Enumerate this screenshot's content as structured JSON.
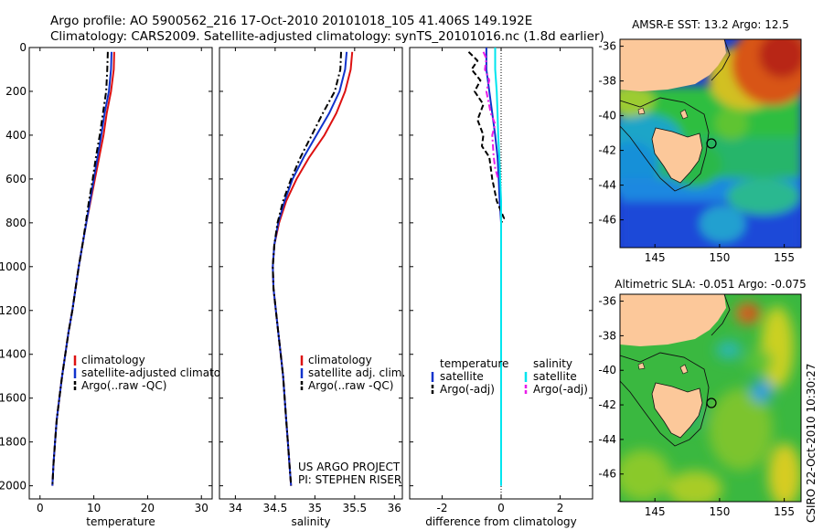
{
  "header": {
    "line1": "Argo profile: AO 5900562_216 17-Oct-2010 20101018_105 41.406S 149.192E",
    "line2": "Climatology: CARS2009. Satellite-adjusted climatology: synTS_20101016.nc (1.8d earlier)"
  },
  "side_text": "CSIRO 22-Oct-2010 10:30:27",
  "colors": {
    "red": "#dd1111",
    "blue": "#1133cc",
    "black": "#000000",
    "cyan": "#00e5ee",
    "magenta": "#e81ce8"
  },
  "chart_data": [
    {
      "type": "line",
      "xlabel": "temperature",
      "xlim": [
        -2,
        32
      ],
      "xticks": [
        0,
        10,
        20,
        30
      ],
      "ylim": [
        0,
        2060
      ],
      "yticks": [
        0,
        200,
        400,
        600,
        800,
        1000,
        1200,
        1400,
        1600,
        1800,
        2000
      ],
      "y_reversed": true,
      "legend_placement": "lower-center",
      "legend": [
        "climatology",
        "satellite-adjusted climatology",
        "Argo(..raw -QC)"
      ],
      "series": [
        {
          "name": "climatology",
          "color": "red",
          "style": "solid",
          "points": [
            [
              13.8,
              20
            ],
            [
              13.7,
              100
            ],
            [
              13.2,
              200
            ],
            [
              12.4,
              300
            ],
            [
              11.8,
              400
            ],
            [
              11.0,
              500
            ],
            [
              10.2,
              600
            ],
            [
              9.4,
              700
            ],
            [
              8.6,
              800
            ],
            [
              7.9,
              900
            ],
            [
              7.2,
              1000
            ],
            [
              6.6,
              1100
            ],
            [
              6.0,
              1200
            ],
            [
              5.3,
              1300
            ],
            [
              4.7,
              1400
            ],
            [
              4.1,
              1500
            ],
            [
              3.6,
              1600
            ],
            [
              3.1,
              1700
            ],
            [
              2.8,
              1800
            ],
            [
              2.5,
              1900
            ],
            [
              2.3,
              2000
            ]
          ]
        },
        {
          "name": "satellite-adjusted climatology",
          "color": "blue",
          "style": "solid",
          "points": [
            [
              13.3,
              20
            ],
            [
              13.2,
              100
            ],
            [
              12.8,
              200
            ],
            [
              12.0,
              300
            ],
            [
              11.4,
              400
            ],
            [
              10.7,
              500
            ],
            [
              10.0,
              600
            ],
            [
              9.3,
              700
            ],
            [
              8.6,
              800
            ],
            [
              7.9,
              900
            ],
            [
              7.2,
              1000
            ],
            [
              6.6,
              1100
            ],
            [
              6.0,
              1200
            ],
            [
              5.3,
              1300
            ],
            [
              4.7,
              1400
            ],
            [
              4.1,
              1500
            ],
            [
              3.6,
              1600
            ],
            [
              3.1,
              1700
            ],
            [
              2.8,
              1800
            ],
            [
              2.5,
              1900
            ],
            [
              2.3,
              2000
            ]
          ]
        },
        {
          "name": "Argo(..raw -QC)",
          "color": "black",
          "style": "dashdot",
          "points": [
            [
              12.6,
              20
            ],
            [
              12.5,
              100
            ],
            [
              12.3,
              200
            ],
            [
              11.7,
              300
            ],
            [
              11.1,
              400
            ],
            [
              10.4,
              500
            ],
            [
              9.8,
              600
            ],
            [
              9.1,
              700
            ],
            [
              8.5,
              800
            ],
            [
              7.9,
              900
            ],
            [
              7.2,
              1000
            ],
            [
              6.6,
              1100
            ],
            [
              6.0,
              1200
            ],
            [
              5.3,
              1300
            ],
            [
              4.7,
              1400
            ],
            [
              4.1,
              1500
            ],
            [
              3.6,
              1600
            ],
            [
              3.1,
              1700
            ],
            [
              2.8,
              1800
            ],
            [
              2.5,
              1900
            ],
            [
              2.3,
              2000
            ]
          ]
        }
      ]
    },
    {
      "type": "line",
      "xlabel": "salinity",
      "xlim": [
        33.8,
        36.1
      ],
      "xticks": [
        34,
        34.5,
        35,
        35.5,
        36
      ],
      "ylim": [
        0,
        2060
      ],
      "y_reversed": true,
      "legend_placement": "lower-right",
      "legend": [
        "climatology",
        "satellite adj. clim.",
        "Argo(..raw -QC)"
      ],
      "annotation": [
        "US ARGO PROJECT",
        "PI: STEPHEN RISER"
      ],
      "series": [
        {
          "name": "climatology",
          "color": "red",
          "style": "solid",
          "points": [
            [
              35.47,
              20
            ],
            [
              35.45,
              100
            ],
            [
              35.38,
              200
            ],
            [
              35.27,
              300
            ],
            [
              35.12,
              400
            ],
            [
              34.93,
              500
            ],
            [
              34.77,
              600
            ],
            [
              34.64,
              700
            ],
            [
              34.55,
              800
            ],
            [
              34.49,
              900
            ],
            [
              34.47,
              1000
            ],
            [
              34.48,
              1100
            ],
            [
              34.51,
              1200
            ],
            [
              34.54,
              1300
            ],
            [
              34.57,
              1400
            ],
            [
              34.6,
              1500
            ],
            [
              34.62,
              1600
            ],
            [
              34.64,
              1700
            ],
            [
              34.66,
              1800
            ],
            [
              34.68,
              1900
            ],
            [
              34.7,
              2000
            ]
          ]
        },
        {
          "name": "satellite adj. clim.",
          "color": "blue",
          "style": "solid",
          "points": [
            [
              35.4,
              20
            ],
            [
              35.38,
              100
            ],
            [
              35.31,
              200
            ],
            [
              35.18,
              300
            ],
            [
              35.02,
              400
            ],
            [
              34.86,
              500
            ],
            [
              34.72,
              600
            ],
            [
              34.62,
              700
            ],
            [
              34.54,
              800
            ],
            [
              34.49,
              900
            ],
            [
              34.47,
              1000
            ],
            [
              34.48,
              1100
            ],
            [
              34.51,
              1200
            ],
            [
              34.54,
              1300
            ],
            [
              34.57,
              1400
            ],
            [
              34.6,
              1500
            ],
            [
              34.62,
              1600
            ],
            [
              34.64,
              1700
            ],
            [
              34.66,
              1800
            ],
            [
              34.68,
              1900
            ],
            [
              34.7,
              2000
            ]
          ]
        },
        {
          "name": "Argo(..raw -QC)",
          "color": "black",
          "style": "dashdot",
          "points": [
            [
              35.33,
              20
            ],
            [
              35.32,
              100
            ],
            [
              35.25,
              200
            ],
            [
              35.1,
              300
            ],
            [
              34.96,
              400
            ],
            [
              34.82,
              500
            ],
            [
              34.7,
              600
            ],
            [
              34.6,
              700
            ],
            [
              34.53,
              800
            ],
            [
              34.49,
              900
            ],
            [
              34.47,
              1000
            ],
            [
              34.48,
              1100
            ],
            [
              34.51,
              1200
            ],
            [
              34.54,
              1300
            ],
            [
              34.57,
              1400
            ],
            [
              34.6,
              1500
            ],
            [
              34.62,
              1600
            ],
            [
              34.64,
              1700
            ],
            [
              34.66,
              1800
            ],
            [
              34.68,
              1900
            ],
            [
              34.7,
              2000
            ]
          ]
        }
      ]
    },
    {
      "type": "line",
      "xlabel": "difference from climatology",
      "xlim": [
        -3.1,
        3.1
      ],
      "xticks": [
        -2,
        0,
        2
      ],
      "ylim": [
        0,
        2060
      ],
      "y_reversed": true,
      "reference_line": 0,
      "legend_placement": "lower-center",
      "legend_groups": [
        {
          "heading": "temperature",
          "entries": [
            "satellite",
            "Argo(-adj)"
          ]
        },
        {
          "heading": "salinity",
          "entries": [
            "satellite",
            "Argo(-adj)"
          ]
        }
      ],
      "series": [
        {
          "name": "temperature satellite",
          "color": "blue",
          "style": "solid",
          "points": [
            [
              -0.5,
              0
            ],
            [
              -0.5,
              100
            ],
            [
              -0.4,
              200
            ],
            [
              -0.3,
              300
            ],
            [
              -0.2,
              400
            ],
            [
              -0.12,
              500
            ],
            [
              -0.08,
              600
            ],
            [
              -0.05,
              700
            ],
            [
              0.0,
              800
            ],
            [
              0.0,
              2000
            ]
          ]
        },
        {
          "name": "temperature Argo(-adj)",
          "color": "black",
          "style": "dashed",
          "points": [
            [
              -1.1,
              20
            ],
            [
              -0.8,
              60
            ],
            [
              -1.0,
              100
            ],
            [
              -0.7,
              150
            ],
            [
              -0.9,
              200
            ],
            [
              -0.6,
              260
            ],
            [
              -0.8,
              330
            ],
            [
              -0.6,
              400
            ],
            [
              -0.65,
              450
            ],
            [
              -0.4,
              500
            ],
            [
              -0.3,
              600
            ],
            [
              -0.15,
              700
            ],
            [
              0.1,
              780
            ],
            [
              0.0,
              800
            ]
          ]
        },
        {
          "name": "salinity satellite",
          "color": "cyan",
          "style": "solid",
          "points": [
            [
              -0.2,
              0
            ],
            [
              -0.2,
              100
            ],
            [
              -0.15,
              200
            ],
            [
              -0.12,
              300
            ],
            [
              -0.1,
              400
            ],
            [
              -0.06,
              500
            ],
            [
              -0.03,
              600
            ],
            [
              0.0,
              700
            ],
            [
              0.0,
              2000
            ]
          ]
        },
        {
          "name": "salinity Argo(-adj)",
          "color": "magenta",
          "style": "dashdot",
          "points": [
            [
              -0.6,
              20
            ],
            [
              -0.5,
              50
            ],
            [
              -0.55,
              100
            ],
            [
              -0.4,
              150
            ],
            [
              -0.5,
              200
            ],
            [
              -0.35,
              300
            ],
            [
              -0.2,
              350
            ],
            [
              -0.3,
              400
            ],
            [
              -0.25,
              500
            ],
            [
              -0.2,
              550
            ],
            [
              -0.1,
              600
            ]
          ]
        }
      ]
    },
    {
      "type": "heatmap",
      "title": "AMSR-E SST: 13.2 Argo: 12.5",
      "x_range": [
        142.3,
        156.3
      ],
      "y_range": [
        -47.6,
        -35.6
      ],
      "xticks": [
        145,
        150,
        155
      ],
      "yticks": [
        -36,
        -38,
        -40,
        -42,
        -44,
        -46
      ],
      "float_position": [
        149.192,
        -41.406
      ]
    },
    {
      "type": "heatmap",
      "title": "Altimetric SLA: -0.051 Argo: -0.075",
      "x_range": [
        142.3,
        156.3
      ],
      "y_range": [
        -47.6,
        -35.6
      ],
      "xticks": [
        145,
        150,
        155
      ],
      "yticks": [
        -36,
        -38,
        -40,
        -42,
        -44,
        -46
      ],
      "float_position": [
        149.192,
        -41.406
      ]
    }
  ]
}
